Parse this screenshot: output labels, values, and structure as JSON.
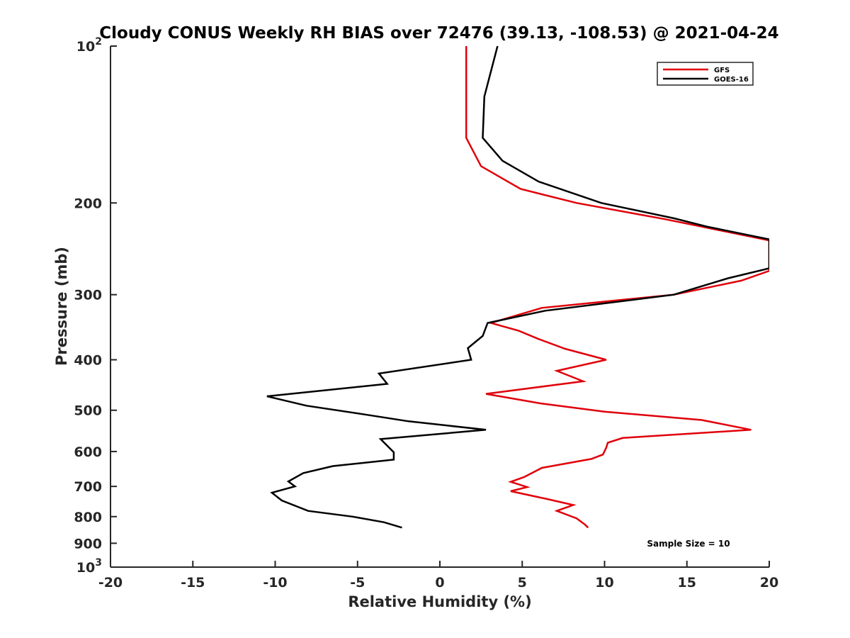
{
  "chart_data": {
    "type": "line",
    "title": "Cloudy CONUS Weekly RH BIAS over 72476 (39.13, -108.53) @ 2021-04-24",
    "xlabel": "Relative Humidity (%)",
    "ylabel": "Pressure (mb)",
    "xlim": [
      -20,
      20
    ],
    "ylim": [
      100,
      1000
    ],
    "y_scale": "log",
    "y_reversed": true,
    "x_ticks": [
      "-20",
      "-15",
      "-10",
      "-5",
      "0",
      "5",
      "10",
      "15",
      "20"
    ],
    "y_ticks": [
      {
        "value": 100,
        "base": "10",
        "exp": "2"
      },
      {
        "value": 200,
        "label": "200"
      },
      {
        "value": 300,
        "label": "300"
      },
      {
        "value": 400,
        "label": "400"
      },
      {
        "value": 500,
        "label": "500"
      },
      {
        "value": 600,
        "label": "600"
      },
      {
        "value": 700,
        "label": "700"
      },
      {
        "value": 800,
        "label": "800"
      },
      {
        "value": 900,
        "label": "900"
      },
      {
        "value": 1000,
        "base": "10",
        "exp": "3"
      }
    ],
    "legend_position": "top-right",
    "annotation": "Sample Size = 10",
    "series": [
      {
        "name": "GFS",
        "color": "#e0000a",
        "points": [
          [
            1.6,
            100
          ],
          [
            1.6,
            125
          ],
          [
            1.6,
            150
          ],
          [
            2.5,
            170
          ],
          [
            4.9,
            188
          ],
          [
            8.3,
            200
          ],
          [
            13.7,
            215
          ],
          [
            20.0,
            236
          ],
          [
            20.0,
            270
          ],
          [
            18.3,
            282
          ],
          [
            14.2,
            300
          ],
          [
            6.2,
            318
          ],
          [
            3.1,
            340
          ],
          [
            4.8,
            352
          ],
          [
            6.0,
            365
          ],
          [
            7.6,
            381
          ],
          [
            10.1,
            400
          ],
          [
            7.1,
            420
          ],
          [
            8.7,
            440
          ],
          [
            2.8,
            465
          ],
          [
            6.1,
            485
          ],
          [
            10.0,
            503
          ],
          [
            15.9,
            522
          ],
          [
            18.9,
            545
          ],
          [
            11.1,
            565
          ],
          [
            10.2,
            577
          ],
          [
            10.1,
            590
          ],
          [
            9.9,
            608
          ],
          [
            9.2,
            620
          ],
          [
            6.2,
            645
          ],
          [
            5.1,
            672
          ],
          [
            4.3,
            686
          ],
          [
            5.3,
            702
          ],
          [
            4.3,
            715
          ],
          [
            6.5,
            740
          ],
          [
            8.1,
            760
          ],
          [
            7.1,
            780
          ],
          [
            8.3,
            806
          ],
          [
            8.8,
            828
          ],
          [
            9.0,
            840
          ]
        ]
      },
      {
        "name": "GOES-16",
        "color": "#000000",
        "points": [
          [
            3.5,
            100
          ],
          [
            2.7,
            125
          ],
          [
            2.6,
            150
          ],
          [
            3.8,
            166
          ],
          [
            6.0,
            182
          ],
          [
            9.8,
            200
          ],
          [
            14.2,
            214
          ],
          [
            16.2,
            222
          ],
          [
            20.0,
            235
          ],
          [
            20.0,
            267
          ],
          [
            17.5,
            279
          ],
          [
            14.2,
            300
          ],
          [
            6.4,
            322
          ],
          [
            2.9,
            340
          ],
          [
            2.6,
            360
          ],
          [
            1.7,
            380
          ],
          [
            1.9,
            400
          ],
          [
            -3.7,
            425
          ],
          [
            -3.2,
            445
          ],
          [
            -10.5,
            470
          ],
          [
            -8.1,
            490
          ],
          [
            -4.8,
            508
          ],
          [
            -1.9,
            525
          ],
          [
            2.8,
            545
          ],
          [
            -3.6,
            568
          ],
          [
            -2.8,
            602
          ],
          [
            -2.8,
            622
          ],
          [
            -6.5,
            640
          ],
          [
            -8.3,
            660
          ],
          [
            -9.2,
            685
          ],
          [
            -8.8,
            700
          ],
          [
            -10.2,
            720
          ],
          [
            -9.6,
            745
          ],
          [
            -8.0,
            780
          ],
          [
            -5.3,
            800
          ],
          [
            -3.4,
            820
          ],
          [
            -2.3,
            840
          ]
        ]
      }
    ]
  }
}
